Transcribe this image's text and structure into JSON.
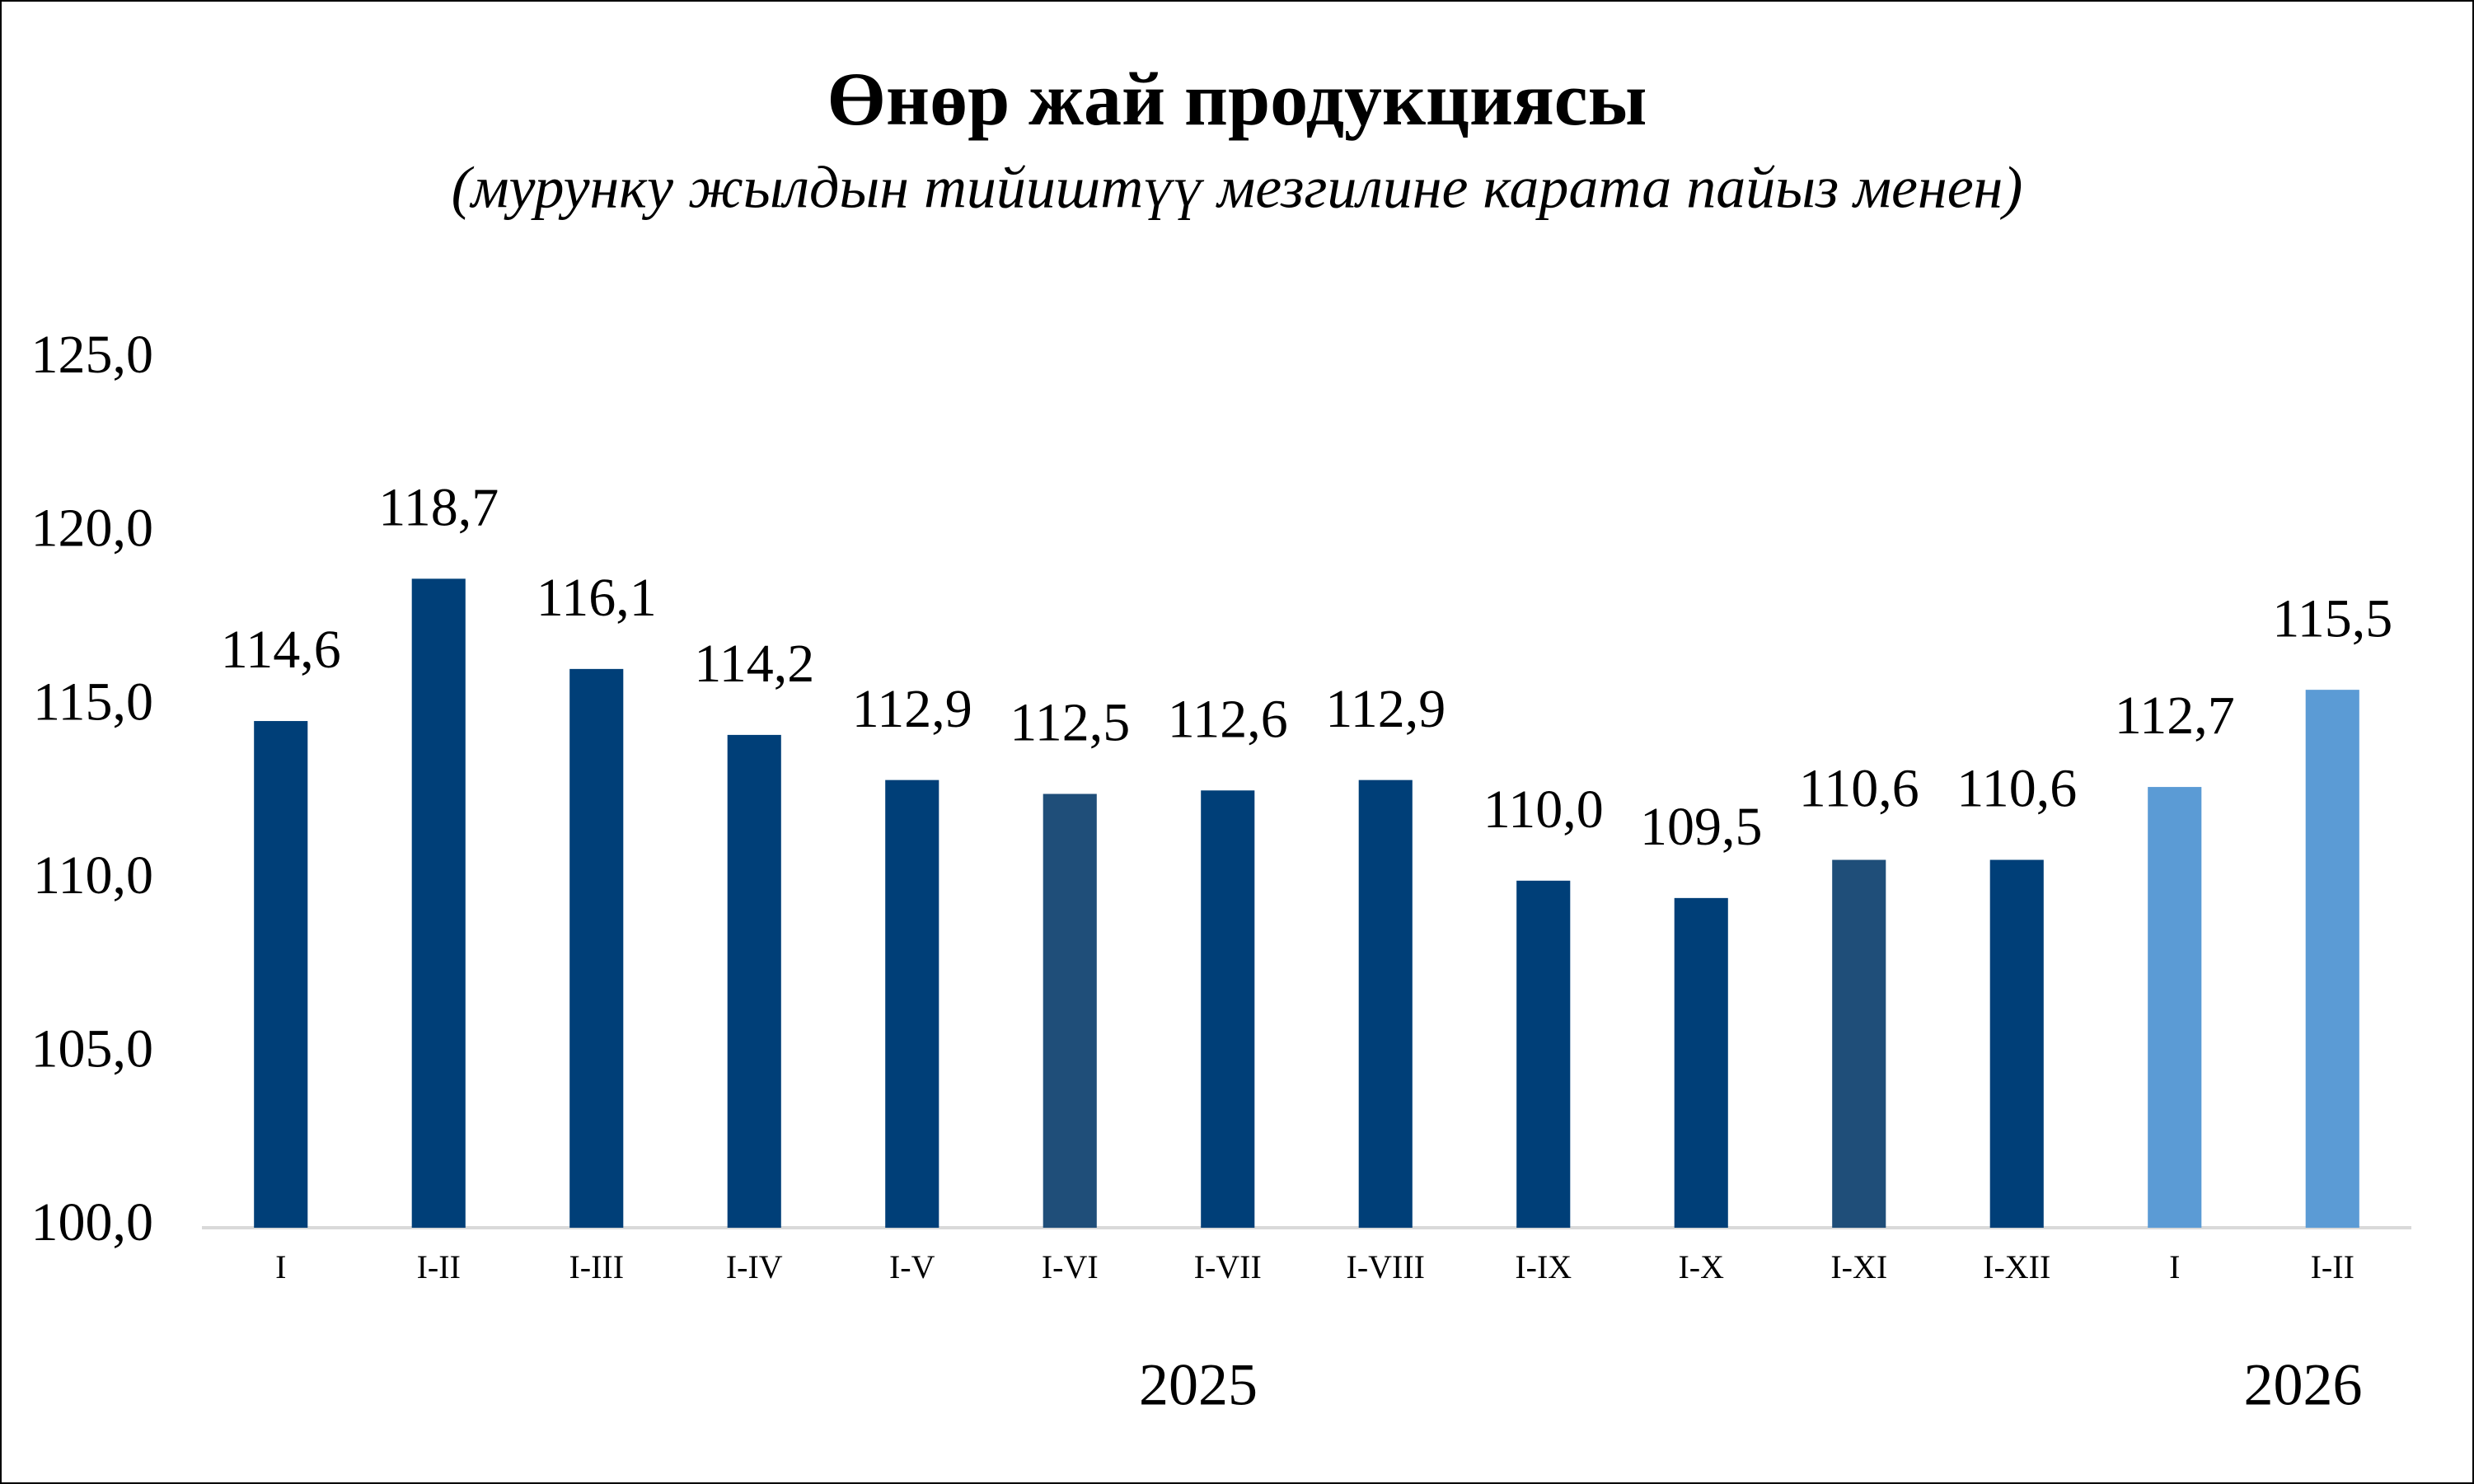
{
  "chart_data": {
    "type": "bar",
    "title": "Өнөр жай продукциясы",
    "subtitle": "(мурунку жылдын тийиштүү  мезгилине карата пайыз менен)",
    "categories": [
      "I",
      "I-II",
      "I-III",
      "I-IV",
      "I-V",
      "I-VI",
      "I-VII",
      "I-VIII",
      "I-IX",
      "I-X",
      "I-XI",
      "I-XII",
      "I",
      "I-II"
    ],
    "values": [
      114.6,
      118.7,
      116.1,
      114.2,
      112.9,
      112.5,
      112.6,
      112.9,
      110.0,
      109.5,
      110.6,
      110.6,
      112.7,
      115.5
    ],
    "value_labels": [
      "114,6",
      "118,7",
      "116,1",
      "114,2",
      "112,9",
      "112,5",
      "112,6",
      "112,9",
      "110,0",
      "109,5",
      "110,6",
      "110,6",
      "112,7",
      "115,5"
    ],
    "colors": [
      "#003f78",
      "#003f78",
      "#003f78",
      "#003f78",
      "#003f78",
      "#1f4e79",
      "#003f78",
      "#003f78",
      "#003f78",
      "#003f78",
      "#1f4e79",
      "#003f78",
      "#5b9bd5",
      "#5b9bd5"
    ],
    "groups": [
      {
        "label": "2025",
        "count": 12
      },
      {
        "label": "2026",
        "count": 2
      }
    ],
    "ylim": [
      100,
      125
    ],
    "yticks": [
      {
        "value": 100,
        "label": "100,0"
      },
      {
        "value": 105,
        "label": "105,0"
      },
      {
        "value": 110,
        "label": "110,0"
      },
      {
        "value": 115,
        "label": "115,0"
      },
      {
        "value": 120,
        "label": "120,0"
      },
      {
        "value": 125,
        "label": "125,0"
      }
    ],
    "grid": false
  }
}
